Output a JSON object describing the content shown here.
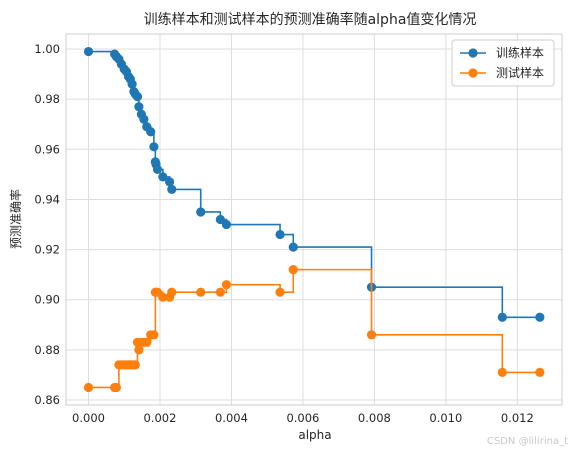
{
  "chart_data": {
    "type": "line",
    "drawstyle": "steps-post",
    "title": "训练样本和测试样本的预测准确率随alpha值变化情况",
    "xlabel": "alpha",
    "ylabel": "预测准确率",
    "xlim": [
      -0.00063,
      0.01325
    ],
    "ylim": [
      0.858,
      1.006
    ],
    "xticks": [
      0.0,
      0.002,
      0.004,
      0.006,
      0.008,
      0.01,
      0.012
    ],
    "xtick_labels": [
      "0.000",
      "0.002",
      "0.004",
      "0.006",
      "0.008",
      "0.010",
      "0.012"
    ],
    "yticks": [
      0.86,
      0.88,
      0.9,
      0.92,
      0.94,
      0.96,
      0.98,
      1.0
    ],
    "ytick_labels": [
      "0.86",
      "0.88",
      "0.90",
      "0.92",
      "0.94",
      "0.96",
      "0.98",
      "1.00"
    ],
    "grid": true,
    "legend_position": "top-right",
    "x": [
      0.0,
      0.00073,
      0.00078,
      0.00085,
      0.00092,
      0.001,
      0.00106,
      0.00112,
      0.00117,
      0.00122,
      0.00127,
      0.00131,
      0.00137,
      0.00141,
      0.00148,
      0.00155,
      0.00163,
      0.00174,
      0.00183,
      0.00187,
      0.00189,
      0.00193,
      0.00208,
      0.00227,
      0.00233,
      0.00314,
      0.00369,
      0.00386,
      0.00536,
      0.00573,
      0.00792,
      0.01158,
      0.01263
    ],
    "series": [
      {
        "name": "训练样本",
        "color": "#1f77b4",
        "values": [
          0.999,
          0.998,
          0.997,
          0.996,
          0.994,
          0.992,
          0.991,
          0.989,
          0.988,
          0.986,
          0.983,
          0.982,
          0.981,
          0.977,
          0.974,
          0.972,
          0.969,
          0.967,
          0.961,
          0.955,
          0.954,
          0.952,
          0.949,
          0.947,
          0.944,
          0.935,
          0.932,
          0.93,
          0.926,
          0.921,
          0.905,
          0.893,
          0.893
        ]
      },
      {
        "name": "测试样本",
        "color": "#ff7f0e",
        "values": [
          0.865,
          0.865,
          0.865,
          0.874,
          0.874,
          0.874,
          0.874,
          0.874,
          0.874,
          0.874,
          0.874,
          0.874,
          0.883,
          0.88,
          0.883,
          0.883,
          0.883,
          0.886,
          0.886,
          0.903,
          0.903,
          0.903,
          0.901,
          0.901,
          0.903,
          0.903,
          0.903,
          0.906,
          0.903,
          0.912,
          0.886,
          0.871,
          0.871
        ]
      }
    ]
  },
  "watermark": "CSDN @lilirina_t"
}
